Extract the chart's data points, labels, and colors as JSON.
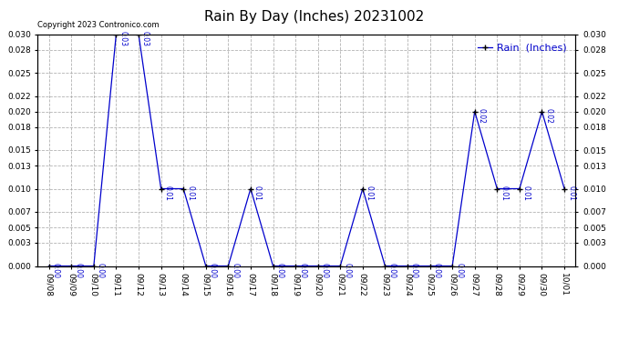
{
  "title": "Rain By Day (Inches) 20231002",
  "copyright_text": "Copyright 2023 Contronico.com",
  "legend_label": "Rain  (Inches)",
  "dates": [
    "09/08",
    "09/09",
    "09/10",
    "09/11",
    "09/12",
    "09/13",
    "09/14",
    "09/15",
    "09/16",
    "09/17",
    "09/18",
    "09/19",
    "09/20",
    "09/21",
    "09/22",
    "09/23",
    "09/24",
    "09/25",
    "09/26",
    "09/27",
    "09/28",
    "09/29",
    "09/30",
    "10/01"
  ],
  "values": [
    0.0,
    0.0,
    0.0,
    0.03,
    0.03,
    0.01,
    0.01,
    0.0,
    0.0,
    0.01,
    0.0,
    0.0,
    0.0,
    0.0,
    0.01,
    0.0,
    0.0,
    0.0,
    0.0,
    0.02,
    0.01,
    0.01,
    0.02,
    0.01
  ],
  "line_color": "#0000cc",
  "marker_color": "#000000",
  "label_color": "#0000cc",
  "background_color": "#ffffff",
  "grid_color": "#aaaaaa",
  "title_color": "#000000",
  "ylim": [
    0.0,
    0.03
  ],
  "yticks": [
    0.0,
    0.003,
    0.005,
    0.007,
    0.01,
    0.013,
    0.015,
    0.018,
    0.02,
    0.022,
    0.025,
    0.028,
    0.03
  ],
  "title_fontsize": 11,
  "label_fontsize": 5.5,
  "tick_fontsize": 6.5,
  "legend_fontsize": 8,
  "copyright_fontsize": 6
}
